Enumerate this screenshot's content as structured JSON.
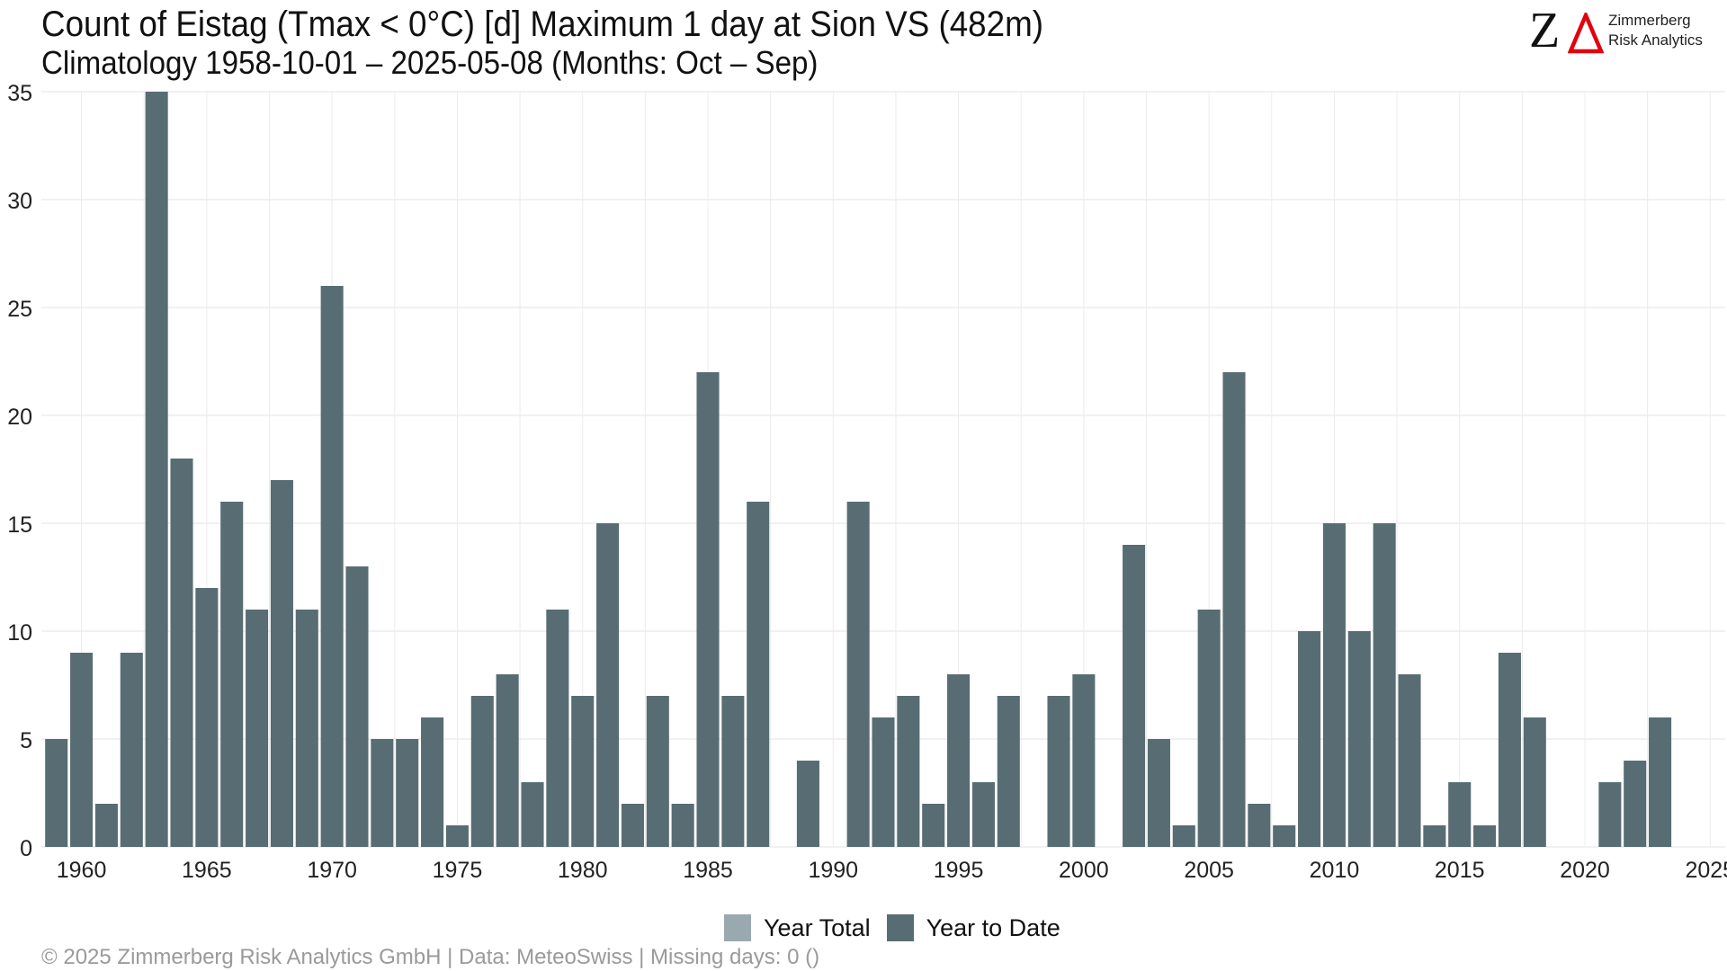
{
  "header": {
    "title": "Count of Eistag (Tmax < 0°C) [d] Maximum 1 day at Sion  VS (482m)",
    "subtitle": "Climatology 1958-10-01 – 2025-05-08 (Months: Oct – Sep)"
  },
  "logo": {
    "mark": "Z",
    "line1": "Zimmerberg",
    "line2": "Risk Analytics",
    "delta_color": "#e3000f"
  },
  "legend": {
    "items": [
      {
        "label": "Year Total",
        "color": "#9aa9b0"
      },
      {
        "label": "Year to Date",
        "color": "#586d73"
      }
    ]
  },
  "footer": "©  2025 Zimmerberg Risk Analytics GmbH | Data: MeteoSwiss | Missing days: 0 ()",
  "chart_data": {
    "type": "bar",
    "title": "Count of Eistag (Tmax < 0°C) [d] Maximum 1 day at Sion  VS (482m)",
    "xlabel": "",
    "ylabel": "",
    "xlim": [
      1958.4,
      2025.6
    ],
    "ylim": [
      0,
      35
    ],
    "yticks": [
      0,
      5,
      10,
      15,
      20,
      25,
      30,
      35
    ],
    "xticks": [
      1960,
      1965,
      1970,
      1975,
      1980,
      1985,
      1990,
      1995,
      2000,
      2005,
      2010,
      2015,
      2020,
      2025
    ],
    "grid": true,
    "legend_position": "bottom",
    "bar_color": "#586d73",
    "series": [
      {
        "name": "Year to Date",
        "x": [
          1959,
          1960,
          1961,
          1962,
          1963,
          1964,
          1965,
          1966,
          1967,
          1968,
          1969,
          1970,
          1971,
          1972,
          1973,
          1974,
          1975,
          1976,
          1977,
          1978,
          1979,
          1980,
          1981,
          1982,
          1983,
          1984,
          1985,
          1986,
          1987,
          1988,
          1989,
          1990,
          1991,
          1992,
          1993,
          1994,
          1995,
          1996,
          1997,
          1998,
          1999,
          2000,
          2001,
          2002,
          2003,
          2004,
          2005,
          2006,
          2007,
          2008,
          2009,
          2010,
          2011,
          2012,
          2013,
          2014,
          2015,
          2016,
          2017,
          2018,
          2019,
          2020,
          2021,
          2022,
          2023,
          2024,
          2025
        ],
        "values": [
          5,
          9,
          2,
          9,
          35,
          18,
          12,
          16,
          11,
          17,
          11,
          26,
          13,
          5,
          5,
          6,
          1,
          7,
          8,
          3,
          11,
          7,
          15,
          2,
          7,
          2,
          22,
          7,
          16,
          0,
          4,
          0,
          16,
          6,
          7,
          2,
          8,
          3,
          7,
          0,
          7,
          8,
          0,
          14,
          5,
          1,
          11,
          22,
          2,
          1,
          10,
          15,
          10,
          15,
          8,
          1,
          3,
          1,
          9,
          6,
          0,
          0,
          3,
          4,
          6,
          0,
          0
        ]
      }
    ]
  }
}
